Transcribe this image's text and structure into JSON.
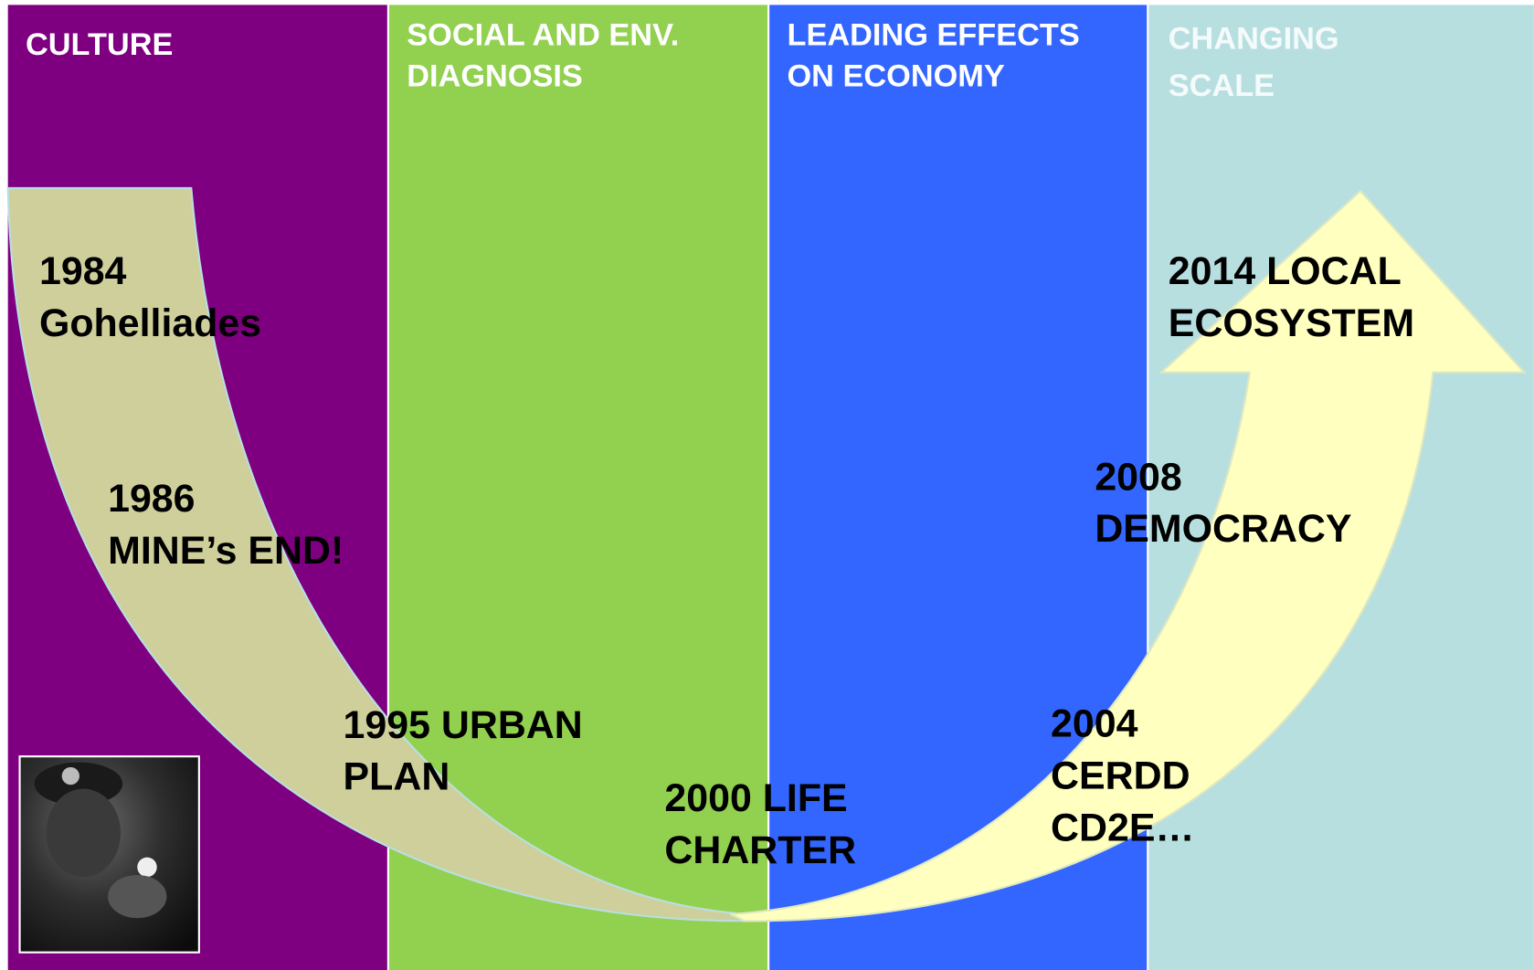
{
  "columns": [
    {
      "title": [
        "CULTURE"
      ]
    },
    {
      "title": [
        "SOCIAL AND ENV.",
        "DIAGNOSIS"
      ]
    },
    {
      "title": [
        "LEADING EFFECTS",
        "ON ECONOMY"
      ]
    },
    {
      "title": [
        "CHANGING",
        "SCALE"
      ]
    }
  ],
  "milestones": [
    {
      "lines": [
        "1984",
        "Gohelliades"
      ]
    },
    {
      "lines": [
        "1986",
        "MINE’s END!"
      ]
    },
    {
      "lines": [
        "1995 URBAN",
        "PLAN"
      ]
    },
    {
      "lines": [
        "2000 LIFE",
        "CHARTER"
      ]
    },
    {
      "lines": [
        "2004",
        "CERDD",
        "CD2E…"
      ]
    },
    {
      "lines": [
        "2008",
        "DEMOCRACY"
      ]
    },
    {
      "lines": [
        "2014 LOCAL",
        "ECOSYSTEM"
      ]
    }
  ]
}
